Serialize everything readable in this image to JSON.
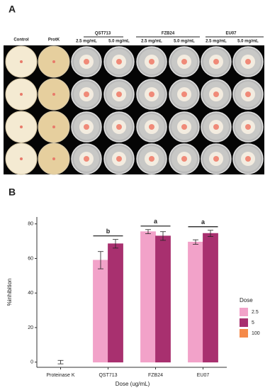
{
  "panel_a": {
    "label": "A",
    "columns": [
      "Control",
      "ProtK"
    ],
    "groups": [
      {
        "name": "QST713",
        "doses": [
          "2.5 mg/mL",
          "5.0 mg/mL"
        ]
      },
      {
        "name": "FZB24",
        "doses": [
          "2.5 mg/mL",
          "5.0 mg/mL"
        ]
      },
      {
        "name": "EU07",
        "doses": [
          "2.5 mg/mL",
          "5.0 mg/mL"
        ]
      }
    ]
  },
  "chart_data": {
    "type": "bar",
    "panel_label": "B",
    "x_label": "Dose (ug/mL)",
    "y_label": "%inhibition",
    "categories": [
      "Proteinase K",
      "QST713",
      "FZB24",
      "EU07"
    ],
    "series": [
      {
        "name": "2.5",
        "color": "#f2a2c9",
        "values": [
          null,
          59,
          75.5,
          69.5
        ],
        "errors": [
          null,
          5,
          1.2,
          1.3
        ]
      },
      {
        "name": "5",
        "color": "#a8306f",
        "values": [
          null,
          68.5,
          73,
          74.5
        ],
        "errors": [
          null,
          2.5,
          2.5,
          1.8
        ]
      },
      {
        "name": "100",
        "color": "#f58a4a",
        "values": [
          0,
          null,
          null,
          null
        ],
        "errors": [
          1,
          null,
          null,
          null
        ]
      }
    ],
    "significance_labels": [
      null,
      "b",
      "a",
      "a"
    ],
    "legend_title": "Dose",
    "ylim": [
      -3,
      84
    ],
    "yticks": [
      0,
      20,
      40,
      60,
      80
    ],
    "grid": false
  }
}
